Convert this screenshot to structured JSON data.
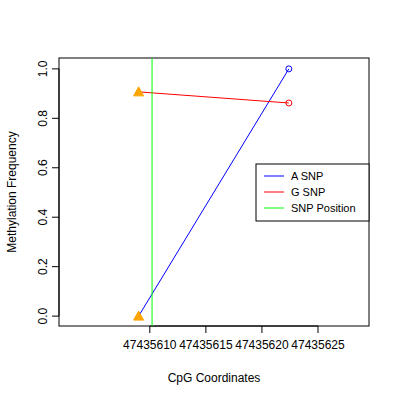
{
  "chart_data": {
    "type": "line",
    "x_label": "CpG Coordinates",
    "y_label": "Methylation Frequency",
    "x": [
      47435609,
      47435622.4
    ],
    "series": [
      {
        "name": "A SNP",
        "color": "#0000ff",
        "values": [
          0,
          1.0
        ],
        "colors": [
          "#ffa500",
          "#0000ff"
        ]
      },
      {
        "name": "G SNP",
        "color": "#ff0000",
        "values": [
          0.907,
          0.862
        ],
        "colors": [
          "#ffa500",
          "#ff0000"
        ]
      },
      {
        "name": "SNP Position",
        "type": "vline",
        "color": "#00ff00",
        "x": [
          47435610.2
        ]
      }
    ],
    "xlim": [
      47435601.9,
      47435629.55
    ],
    "xticks": [
      47435610,
      47435615,
      47435620,
      47435625
    ],
    "ylim": [
      -0.04,
      1.044
    ],
    "yticks": [
      {
        "value": 0,
        "label": "0.0"
      },
      {
        "value": 0.2,
        "label": "0.2"
      },
      {
        "value": 0.4,
        "label": "0.4"
      },
      {
        "value": 0.6,
        "label": "0.6"
      },
      {
        "value": 0.8,
        "label": "0.8"
      },
      {
        "value": 1.0,
        "label": "1.0"
      }
    ],
    "legend": "right",
    "grid": false
  }
}
